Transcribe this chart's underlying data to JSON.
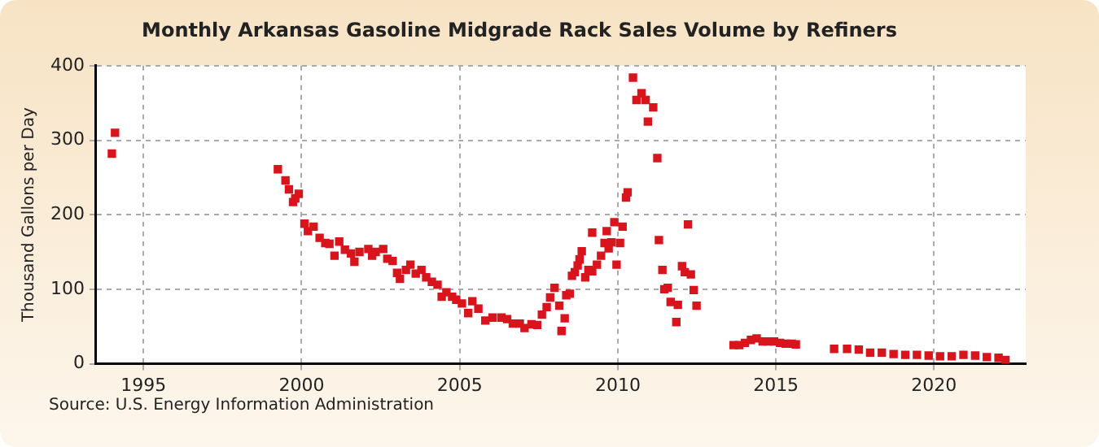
{
  "chart_data": {
    "type": "scatter",
    "title": "Monthly Arkansas Gasoline Midgrade Rack Sales Volume by Refiners",
    "ylabel": "Thousand Gallons per Day",
    "annotations": [
      "Source: U.S. Energy Information Administration"
    ],
    "x": [
      1994.0,
      1994.1,
      1999.25,
      1999.49,
      1999.6,
      1999.73,
      1999.8,
      1999.91,
      2000.09,
      2000.2,
      2000.38,
      2000.57,
      2000.75,
      2000.88,
      2001.04,
      2001.19,
      2001.37,
      2001.56,
      2001.67,
      2001.83,
      2002.11,
      2002.23,
      2002.34,
      2002.58,
      2002.71,
      2002.88,
      2003.02,
      2003.11,
      2003.3,
      2003.44,
      2003.61,
      2003.79,
      2003.94,
      2004.12,
      2004.3,
      2004.43,
      2004.58,
      2004.76,
      2004.89,
      2005.07,
      2005.27,
      2005.4,
      2005.59,
      2005.81,
      2006.04,
      2006.32,
      2006.5,
      2006.68,
      2006.9,
      2007.05,
      2007.27,
      2007.45,
      2007.6,
      2007.75,
      2007.86,
      2008.0,
      2008.15,
      2008.22,
      2008.32,
      2008.37,
      2008.48,
      2008.55,
      2008.64,
      2008.73,
      2008.79,
      2008.86,
      2008.97,
      2009.07,
      2009.19,
      2009.19,
      2009.34,
      2009.47,
      2009.58,
      2009.65,
      2009.71,
      2009.8,
      2009.89,
      2009.96,
      2010.07,
      2010.15,
      2010.26,
      2010.31,
      2010.48,
      2010.59,
      2010.75,
      2010.88,
      2010.95,
      2011.12,
      2011.25,
      2011.3,
      2011.41,
      2011.47,
      2011.58,
      2011.67,
      2011.85,
      2011.9,
      2012.03,
      2012.12,
      2012.22,
      2012.31,
      2012.4,
      2012.49,
      2013.66,
      2013.84,
      2014.02,
      2014.21,
      2014.39,
      2014.58,
      2014.76,
      2014.94,
      2015.13,
      2015.31,
      2015.5,
      2015.63,
      2016.84,
      2017.25,
      2017.62,
      2017.98,
      2018.35,
      2018.72,
      2019.09,
      2019.46,
      2019.83,
      2020.19,
      2020.56,
      2020.93,
      2021.3,
      2021.67,
      2022.04,
      2022.26
    ],
    "series": [
      {
        "color": "#d8141c",
        "values": [
          282,
          310,
          261,
          246,
          234,
          217,
          222,
          228,
          188,
          178,
          184,
          169,
          162,
          161,
          145,
          164,
          153,
          148,
          137,
          150,
          154,
          145,
          150,
          154,
          141,
          138,
          122,
          114,
          126,
          133,
          121,
          126,
          116,
          110,
          106,
          90,
          96,
          90,
          86,
          81,
          68,
          84,
          74,
          58,
          62,
          62,
          60,
          54,
          54,
          48,
          53,
          52,
          66,
          76,
          89,
          102,
          78,
          44,
          61,
          92,
          94,
          118,
          123,
          132,
          140,
          151,
          116,
          126,
          176,
          124,
          133,
          145,
          162,
          178,
          155,
          163,
          190,
          133,
          162,
          184,
          223,
          230,
          384,
          354,
          363,
          354,
          325,
          344,
          276,
          166,
          126,
          100,
          102,
          83,
          56,
          79,
          131,
          123,
          187,
          120,
          99,
          78,
          25,
          25,
          28,
          32,
          34,
          30,
          30,
          30,
          28,
          27,
          27,
          26,
          20,
          20,
          19,
          15,
          15,
          13,
          12,
          12,
          11,
          10,
          10,
          12,
          11,
          9,
          8,
          5
        ]
      }
    ],
    "xlim": [
      1993.5,
      2022.9
    ],
    "xticks": [
      1995,
      2000,
      2005,
      2010,
      2015,
      2020
    ],
    "ylim": [
      0,
      400
    ],
    "yticks": [
      0,
      100,
      200,
      300,
      400
    ],
    "grid": true,
    "legend": false,
    "marker": "square"
  }
}
